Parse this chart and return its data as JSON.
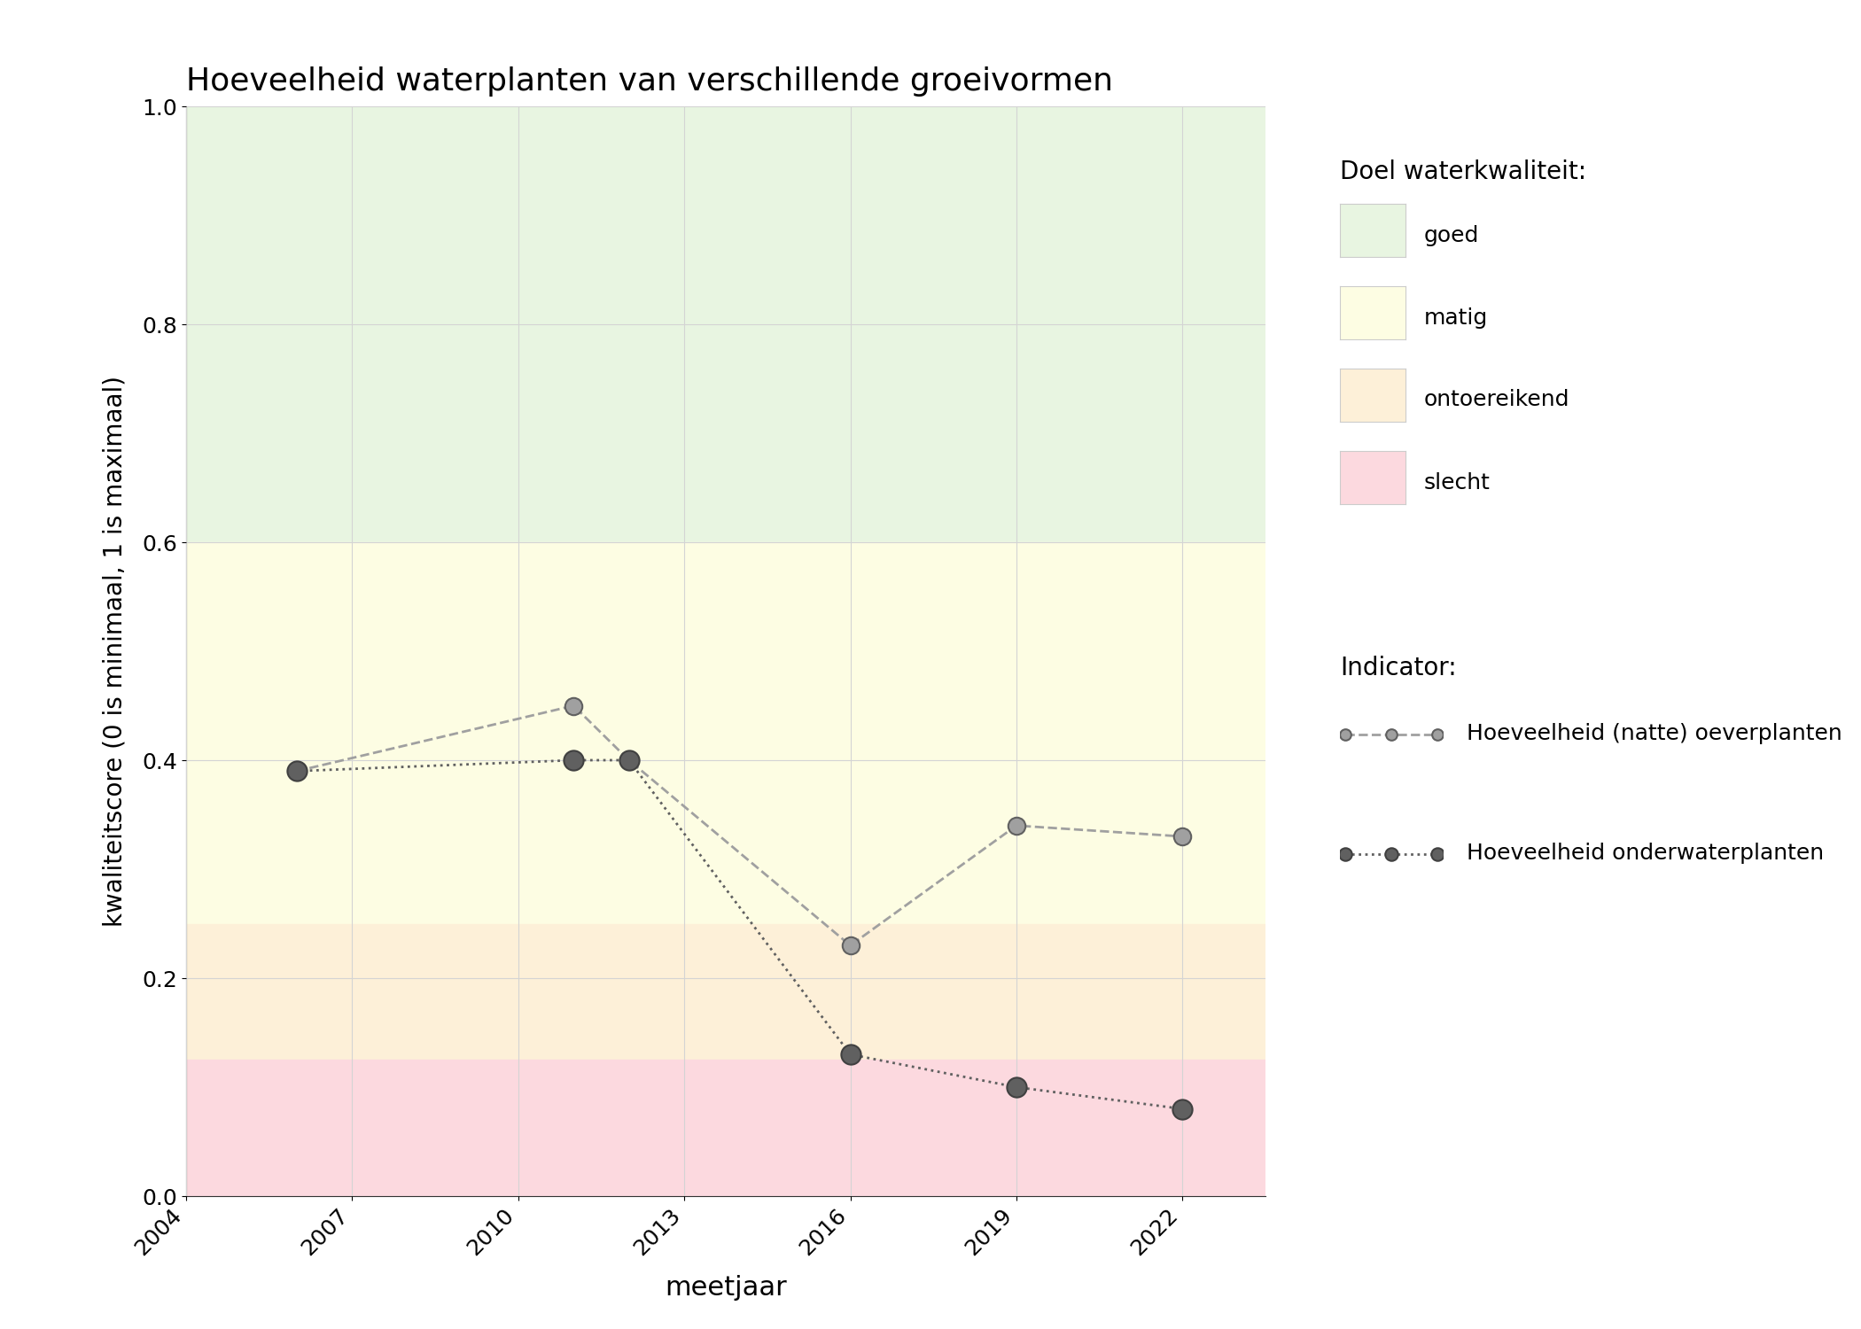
{
  "title": "Hoeveelheid waterplanten van verschillende groeivormen",
  "xlabel": "meetjaar",
  "ylabel": "kwaliteitscore (0 is minimaal, 1 is maximaal)",
  "xlim": [
    2004,
    2023.5
  ],
  "ylim": [
    0.0,
    1.0
  ],
  "xticks": [
    2004,
    2007,
    2010,
    2013,
    2016,
    2019,
    2022
  ],
  "yticks": [
    0.0,
    0.2,
    0.4,
    0.6,
    0.8,
    1.0
  ],
  "background_zones": [
    {
      "ymin": 0.6,
      "ymax": 1.0,
      "color": "#e8f5e1",
      "label": "goed"
    },
    {
      "ymin": 0.25,
      "ymax": 0.6,
      "color": "#fdfde3",
      "label": "matig"
    },
    {
      "ymin": 0.125,
      "ymax": 0.25,
      "color": "#fdf0d8",
      "label": "ontoereikend"
    },
    {
      "ymin": 0.0,
      "ymax": 0.125,
      "color": "#fcd9df",
      "label": "slecht"
    }
  ],
  "series": [
    {
      "label": "Hoeveelheid (natte) oeverplanten",
      "years": [
        2006,
        2011,
        2012,
        2016,
        2019,
        2022
      ],
      "values": [
        0.39,
        0.45,
        0.4,
        0.23,
        0.34,
        0.33
      ],
      "linestyle": "--",
      "color": "#a0a0a0",
      "linewidth": 2.0,
      "markersize": 14,
      "marker": "o",
      "markerfacecolor": "#a0a0a0",
      "markeredgecolor": "#606060",
      "markeredgewidth": 1.5,
      "zorder": 3
    },
    {
      "label": "Hoeveelheid onderwaterplanten",
      "years": [
        2006,
        2011,
        2012,
        2016,
        2019,
        2022
      ],
      "values": [
        0.39,
        0.4,
        0.4,
        0.13,
        0.1,
        0.08
      ],
      "linestyle": ":",
      "color": "#606060",
      "linewidth": 2.0,
      "markersize": 16,
      "marker": "o",
      "markerfacecolor": "#606060",
      "markeredgecolor": "#404040",
      "markeredgewidth": 1.5,
      "zorder": 4
    }
  ],
  "legend_title_quality": "Doel waterkwaliteit:",
  "legend_title_indicator": "Indicator:",
  "grid_color": "#d4d4d4",
  "background_color": "#ffffff",
  "legend_patch_edge": "#cccccc"
}
